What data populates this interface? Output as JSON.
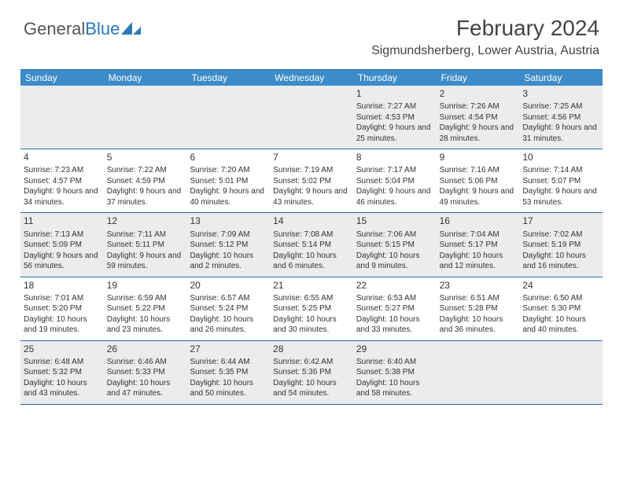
{
  "logo": {
    "part1": "General",
    "part2": "Blue"
  },
  "title": "February 2024",
  "location": "Sigmundsherberg, Lower Austria, Austria",
  "colors": {
    "header_bg": "#3d8cc9",
    "border": "#2a6ea8",
    "shaded": "#ececec",
    "text": "#333333",
    "logo_blue": "#2a7ab8"
  },
  "weekdays": [
    "Sunday",
    "Monday",
    "Tuesday",
    "Wednesday",
    "Thursday",
    "Friday",
    "Saturday"
  ],
  "weeks": [
    [
      null,
      null,
      null,
      null,
      {
        "n": "1",
        "sr": "7:27 AM",
        "ss": "4:53 PM",
        "dl": "9 hours and 25 minutes."
      },
      {
        "n": "2",
        "sr": "7:26 AM",
        "ss": "4:54 PM",
        "dl": "9 hours and 28 minutes."
      },
      {
        "n": "3",
        "sr": "7:25 AM",
        "ss": "4:56 PM",
        "dl": "9 hours and 31 minutes."
      }
    ],
    [
      {
        "n": "4",
        "sr": "7:23 AM",
        "ss": "4:57 PM",
        "dl": "9 hours and 34 minutes."
      },
      {
        "n": "5",
        "sr": "7:22 AM",
        "ss": "4:59 PM",
        "dl": "9 hours and 37 minutes."
      },
      {
        "n": "6",
        "sr": "7:20 AM",
        "ss": "5:01 PM",
        "dl": "9 hours and 40 minutes."
      },
      {
        "n": "7",
        "sr": "7:19 AM",
        "ss": "5:02 PM",
        "dl": "9 hours and 43 minutes."
      },
      {
        "n": "8",
        "sr": "7:17 AM",
        "ss": "5:04 PM",
        "dl": "9 hours and 46 minutes."
      },
      {
        "n": "9",
        "sr": "7:16 AM",
        "ss": "5:06 PM",
        "dl": "9 hours and 49 minutes."
      },
      {
        "n": "10",
        "sr": "7:14 AM",
        "ss": "5:07 PM",
        "dl": "9 hours and 53 minutes."
      }
    ],
    [
      {
        "n": "11",
        "sr": "7:13 AM",
        "ss": "5:09 PM",
        "dl": "9 hours and 56 minutes."
      },
      {
        "n": "12",
        "sr": "7:11 AM",
        "ss": "5:11 PM",
        "dl": "9 hours and 59 minutes."
      },
      {
        "n": "13",
        "sr": "7:09 AM",
        "ss": "5:12 PM",
        "dl": "10 hours and 2 minutes."
      },
      {
        "n": "14",
        "sr": "7:08 AM",
        "ss": "5:14 PM",
        "dl": "10 hours and 6 minutes."
      },
      {
        "n": "15",
        "sr": "7:06 AM",
        "ss": "5:15 PM",
        "dl": "10 hours and 9 minutes."
      },
      {
        "n": "16",
        "sr": "7:04 AM",
        "ss": "5:17 PM",
        "dl": "10 hours and 12 minutes."
      },
      {
        "n": "17",
        "sr": "7:02 AM",
        "ss": "5:19 PM",
        "dl": "10 hours and 16 minutes."
      }
    ],
    [
      {
        "n": "18",
        "sr": "7:01 AM",
        "ss": "5:20 PM",
        "dl": "10 hours and 19 minutes."
      },
      {
        "n": "19",
        "sr": "6:59 AM",
        "ss": "5:22 PM",
        "dl": "10 hours and 23 minutes."
      },
      {
        "n": "20",
        "sr": "6:57 AM",
        "ss": "5:24 PM",
        "dl": "10 hours and 26 minutes."
      },
      {
        "n": "21",
        "sr": "6:55 AM",
        "ss": "5:25 PM",
        "dl": "10 hours and 30 minutes."
      },
      {
        "n": "22",
        "sr": "6:53 AM",
        "ss": "5:27 PM",
        "dl": "10 hours and 33 minutes."
      },
      {
        "n": "23",
        "sr": "6:51 AM",
        "ss": "5:28 PM",
        "dl": "10 hours and 36 minutes."
      },
      {
        "n": "24",
        "sr": "6:50 AM",
        "ss": "5:30 PM",
        "dl": "10 hours and 40 minutes."
      }
    ],
    [
      {
        "n": "25",
        "sr": "6:48 AM",
        "ss": "5:32 PM",
        "dl": "10 hours and 43 minutes."
      },
      {
        "n": "26",
        "sr": "6:46 AM",
        "ss": "5:33 PM",
        "dl": "10 hours and 47 minutes."
      },
      {
        "n": "27",
        "sr": "6:44 AM",
        "ss": "5:35 PM",
        "dl": "10 hours and 50 minutes."
      },
      {
        "n": "28",
        "sr": "6:42 AM",
        "ss": "5:36 PM",
        "dl": "10 hours and 54 minutes."
      },
      {
        "n": "29",
        "sr": "6:40 AM",
        "ss": "5:38 PM",
        "dl": "10 hours and 58 minutes."
      },
      null,
      null
    ]
  ]
}
